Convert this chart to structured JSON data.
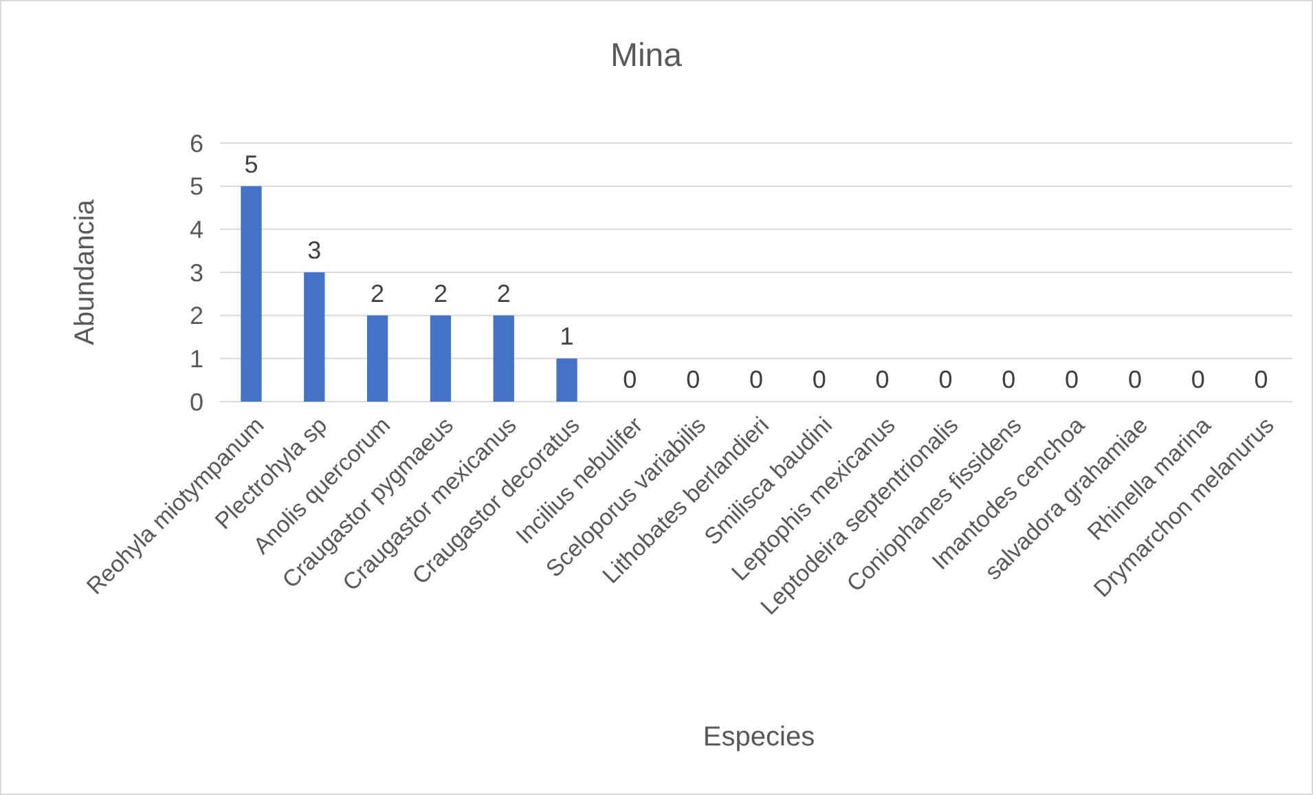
{
  "chart_data": {
    "type": "bar",
    "title": "Mina",
    "xlabel": "Especies",
    "ylabel": "Abundancia",
    "categories": [
      "Reohyla miotympanum",
      "Plectrohyla sp",
      "Anolis quercorum",
      "Craugastor pygmaeus",
      "Craugastor mexicanus",
      "Craugastor decoratus",
      "Incilius nebulifer",
      "Sceloporus variabilis",
      "Lithobates berlandieri",
      "Smilisca baudini",
      "Leptophis mexicanus",
      "Leptodeira septentrionalis",
      "Coniophanes fissidens",
      "Imantodes cenchoa",
      "salvadora grahamiae",
      "Rhinella marina",
      "Drymarchon melanurus"
    ],
    "values": [
      5,
      3,
      2,
      2,
      2,
      1,
      0,
      0,
      0,
      0,
      0,
      0,
      0,
      0,
      0,
      0,
      0
    ],
    "color": "#4472c4",
    "ylim": [
      0,
      6
    ],
    "yticks": [
      0,
      1,
      2,
      3,
      4,
      5,
      6
    ],
    "grid": "y",
    "data_labels": true
  }
}
